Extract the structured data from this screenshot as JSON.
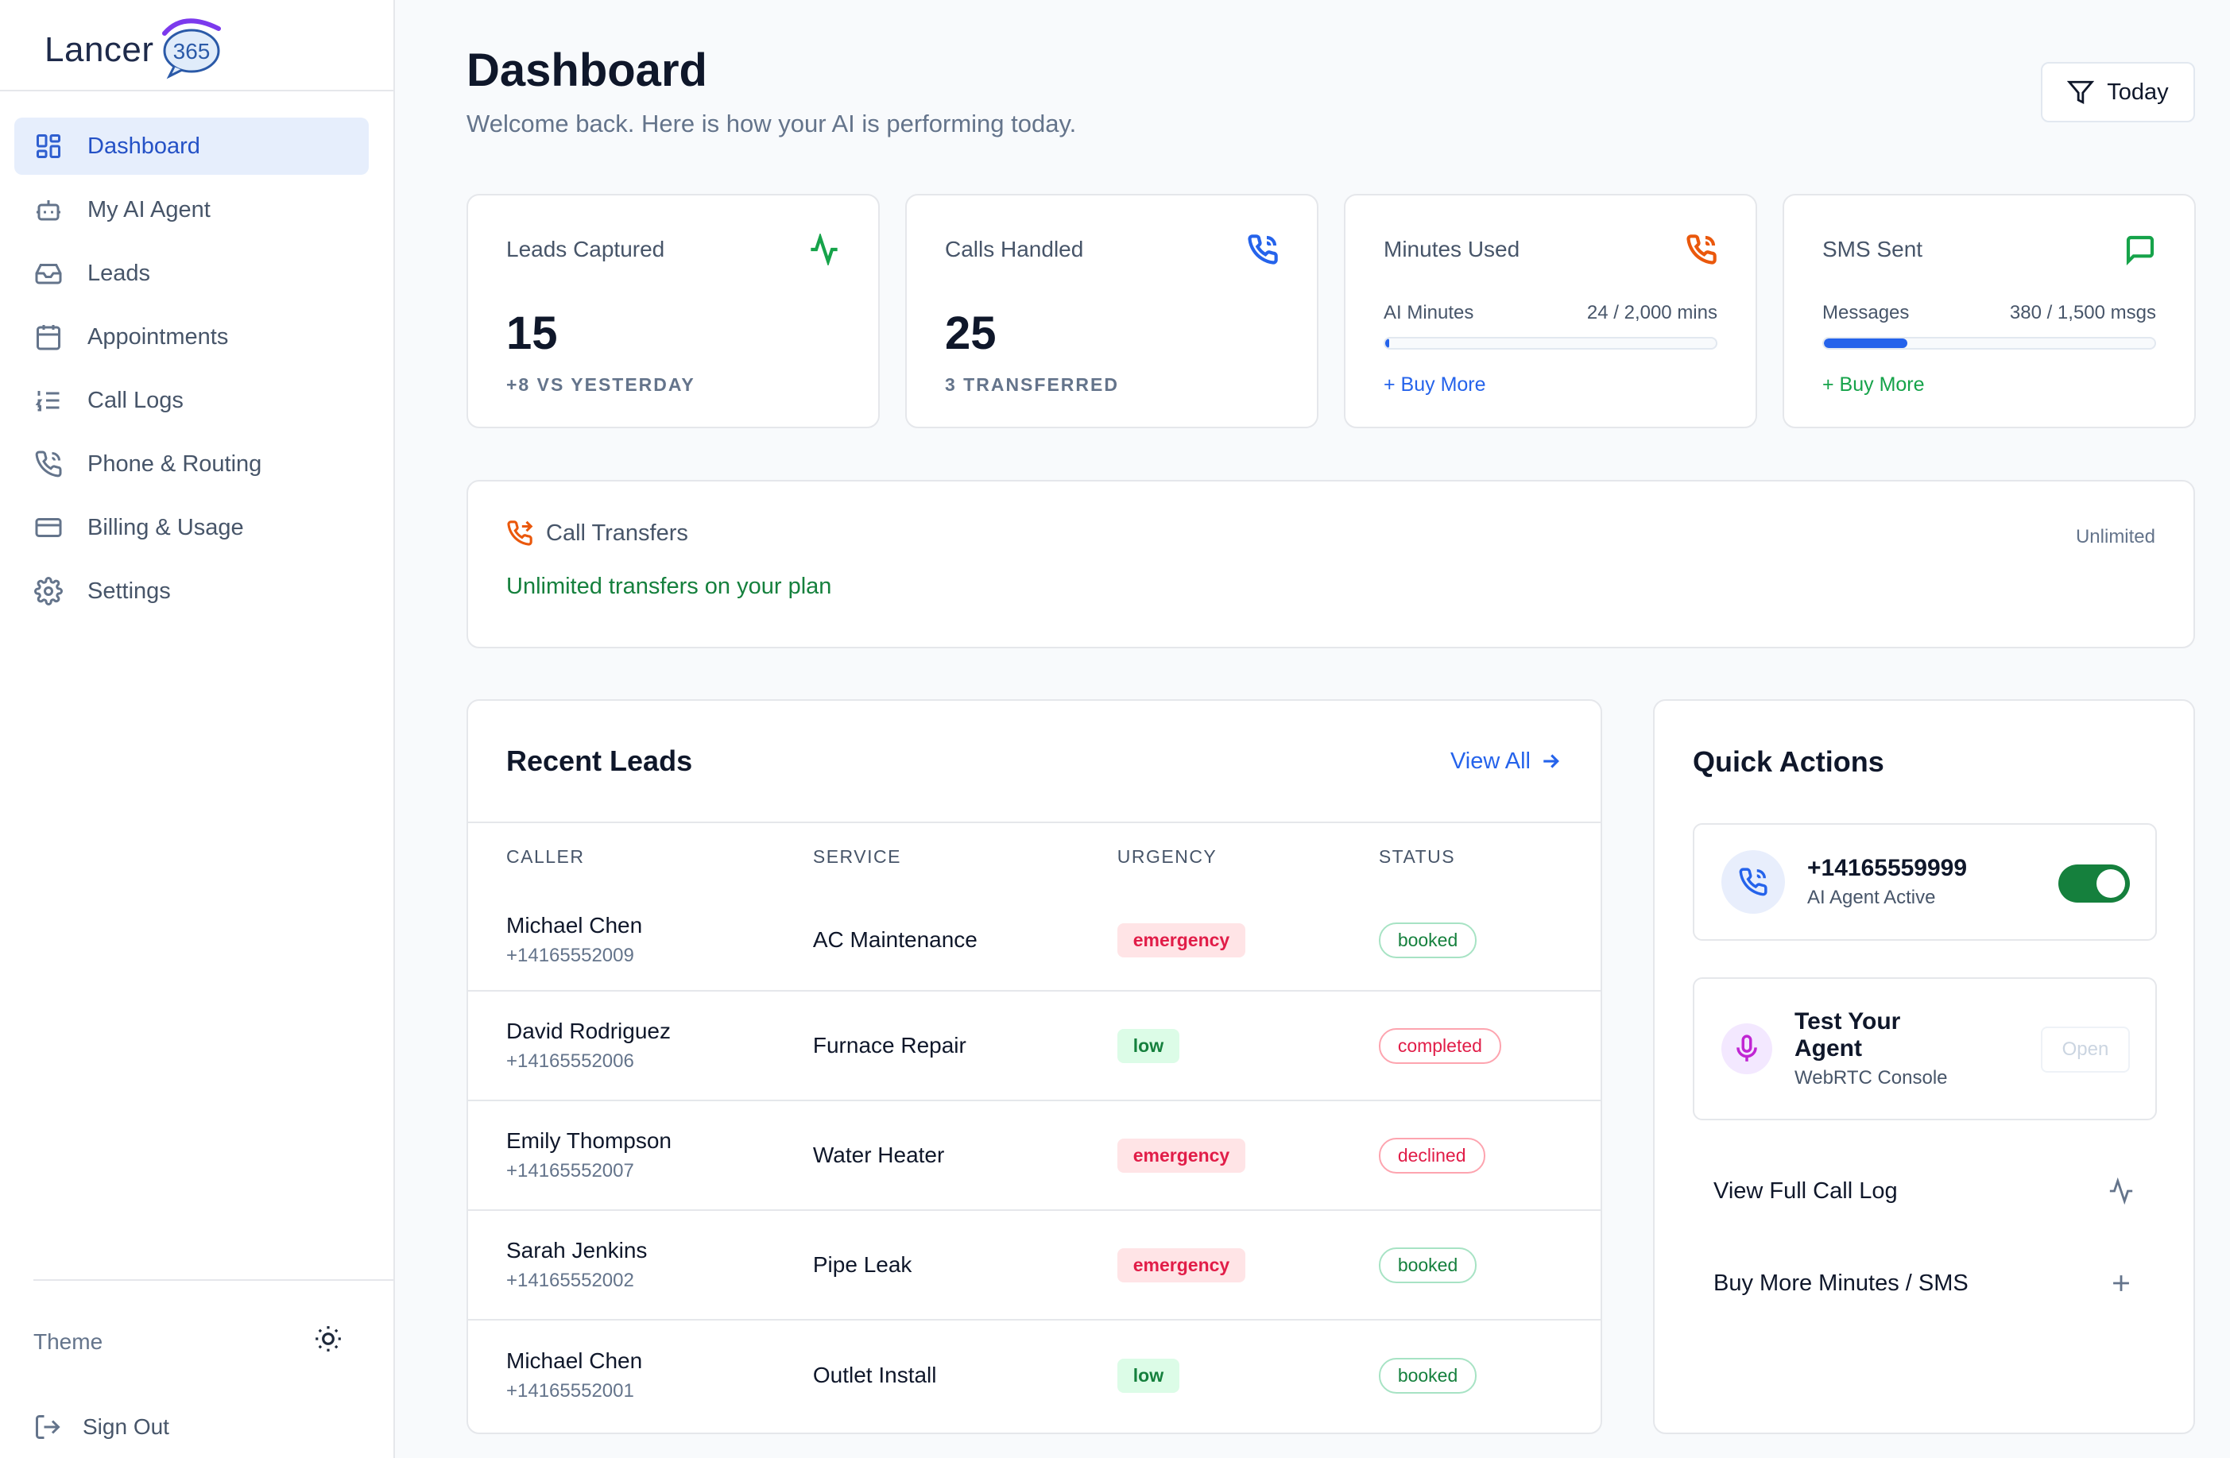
{
  "brand": {
    "name_main": "Lancer",
    "name_badge": "365"
  },
  "sidebar": {
    "items": [
      {
        "label": "Dashboard",
        "icon": "dashboard-grid-icon",
        "active": true
      },
      {
        "label": "My AI Agent",
        "icon": "bot-icon"
      },
      {
        "label": "Leads",
        "icon": "inbox-icon"
      },
      {
        "label": "Appointments",
        "icon": "calendar-icon"
      },
      {
        "label": "Call Logs",
        "icon": "list-ordered-icon"
      },
      {
        "label": "Phone & Routing",
        "icon": "phone-call-icon"
      },
      {
        "label": "Billing & Usage",
        "icon": "credit-card-icon"
      },
      {
        "label": "Settings",
        "icon": "gear-icon"
      }
    ],
    "theme_label": "Theme",
    "signout_label": "Sign Out"
  },
  "header": {
    "title": "Dashboard",
    "subtitle": "Welcome back. Here is how your AI is performing today.",
    "filter_label": "Today"
  },
  "stats": {
    "leads": {
      "title": "Leads Captured",
      "value": "15",
      "sub": "+8 VS YESTERDAY",
      "icon": "activity-icon",
      "icon_color": "#16a34a"
    },
    "calls": {
      "title": "Calls Handled",
      "value": "25",
      "sub": "3 TRANSFERRED",
      "icon": "phone-call-icon",
      "icon_color": "#2563eb"
    },
    "minutes": {
      "title": "Minutes Used",
      "label": "AI Minutes",
      "usage": "24 / 2,000 mins",
      "fill_fraction": 0.012,
      "buy": "+ Buy More",
      "icon": "phone-outgoing-icon",
      "icon_color": "#ea580c"
    },
    "sms": {
      "title": "SMS Sent",
      "label": "Messages",
      "usage": "380 / 1,500 msgs",
      "fill_fraction": 0.253,
      "buy": "+ Buy More",
      "icon": "message-square-icon",
      "icon_color": "#16a34a"
    }
  },
  "transfers": {
    "title": "Call Transfers",
    "badge": "Unlimited",
    "note": "Unlimited transfers on your plan"
  },
  "leads": {
    "title": "Recent Leads",
    "view_all": "View All",
    "columns": [
      "CALLER",
      "SERVICE",
      "URGENCY",
      "STATUS"
    ],
    "rows": [
      {
        "name": "Michael Chen",
        "phone": "+14165552009",
        "service": "AC Maintenance",
        "urgency": "emergency",
        "status": "booked"
      },
      {
        "name": "David Rodriguez",
        "phone": "+14165552006",
        "service": "Furnace Repair",
        "urgency": "low",
        "status": "completed"
      },
      {
        "name": "Emily Thompson",
        "phone": "+14165552007",
        "service": "Water Heater",
        "urgency": "emergency",
        "status": "declined"
      },
      {
        "name": "Sarah Jenkins",
        "phone": "+14165552002",
        "service": "Pipe Leak",
        "urgency": "emergency",
        "status": "booked"
      },
      {
        "name": "Michael Chen",
        "phone": "+14165552001",
        "service": "Outlet Install",
        "urgency": "low",
        "status": "booked"
      }
    ]
  },
  "quick_actions": {
    "title": "Quick Actions",
    "phone_number": "+14165559999",
    "phone_status": "AI Agent Active",
    "agent_toggle_on": true,
    "test_title_line1": "Test Your",
    "test_title_line2": "Agent",
    "test_sub": "WebRTC Console",
    "open_label": "Open",
    "link_call_log": "View Full Call Log",
    "link_buy": "Buy More Minutes / SMS"
  }
}
